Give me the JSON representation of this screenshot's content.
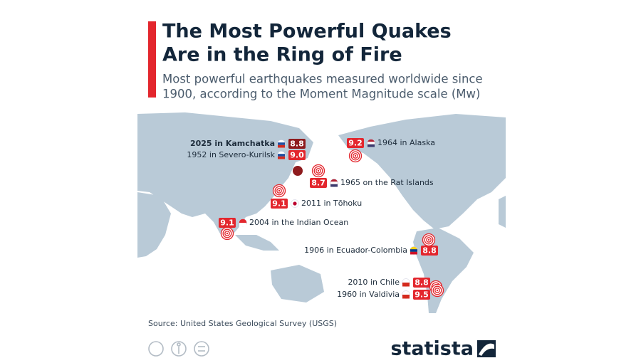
{
  "header": {
    "title_lines": [
      "The Most Powerful Quakes",
      "Are in the Ring of Fire"
    ],
    "subtitle_lines": [
      "Most powerful earthquakes measured worldwide since",
      "1900, according to the Moment Magnitude scale (Mw)"
    ]
  },
  "quakes": [
    {
      "label": "2025 in Kamchatka",
      "magnitude": "8.8"
    },
    {
      "label": "1952 in Severo-Kurilsk",
      "magnitude": "9.0"
    },
    {
      "label": "1964 in Alaska",
      "magnitude": "9.2"
    },
    {
      "label": "1965 on the Rat Islands",
      "magnitude": "8.7"
    },
    {
      "label": "2011 in Tōhoku",
      "magnitude": "9.1"
    },
    {
      "label": "2004 in the Indian Ocean",
      "magnitude": "9.1"
    },
    {
      "label": "1906 in Ecuador-Colombia",
      "magnitude": "8.8"
    },
    {
      "label": "2010 in Chile",
      "magnitude": "8.8"
    },
    {
      "label": "1960 in Valdivia",
      "magnitude": "9.5"
    }
  ],
  "footer": {
    "source": "Source: United States Geological Survey (USGS)",
    "brand": "statista"
  }
}
